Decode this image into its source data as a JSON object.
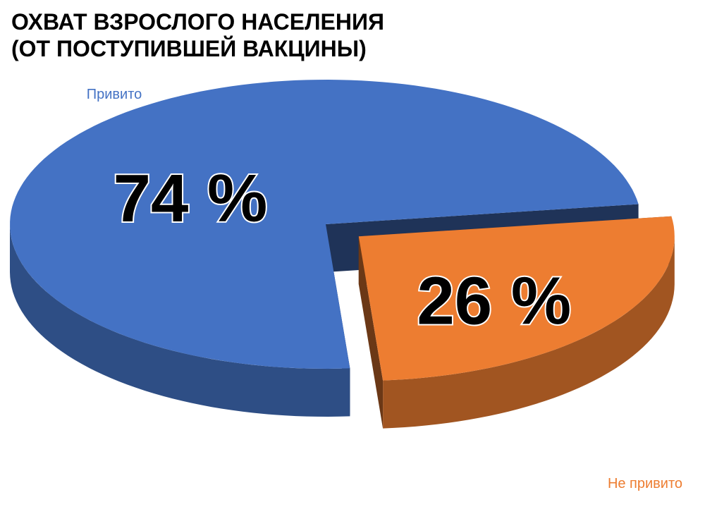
{
  "chart_data": {
    "type": "pie",
    "title": [
      "ОХВАТ ВЗРОСЛОГО НАСЕЛЕНИЯ",
      "(ОТ ПОСТУПИВШЕЙ ВАКЦИНЫ)"
    ],
    "categories": [
      "Привито",
      "Не привито"
    ],
    "values": [
      74,
      26
    ],
    "value_labels": [
      "74 %",
      "26 %"
    ],
    "colors": [
      "#4472c4",
      "#ed7d31"
    ]
  }
}
